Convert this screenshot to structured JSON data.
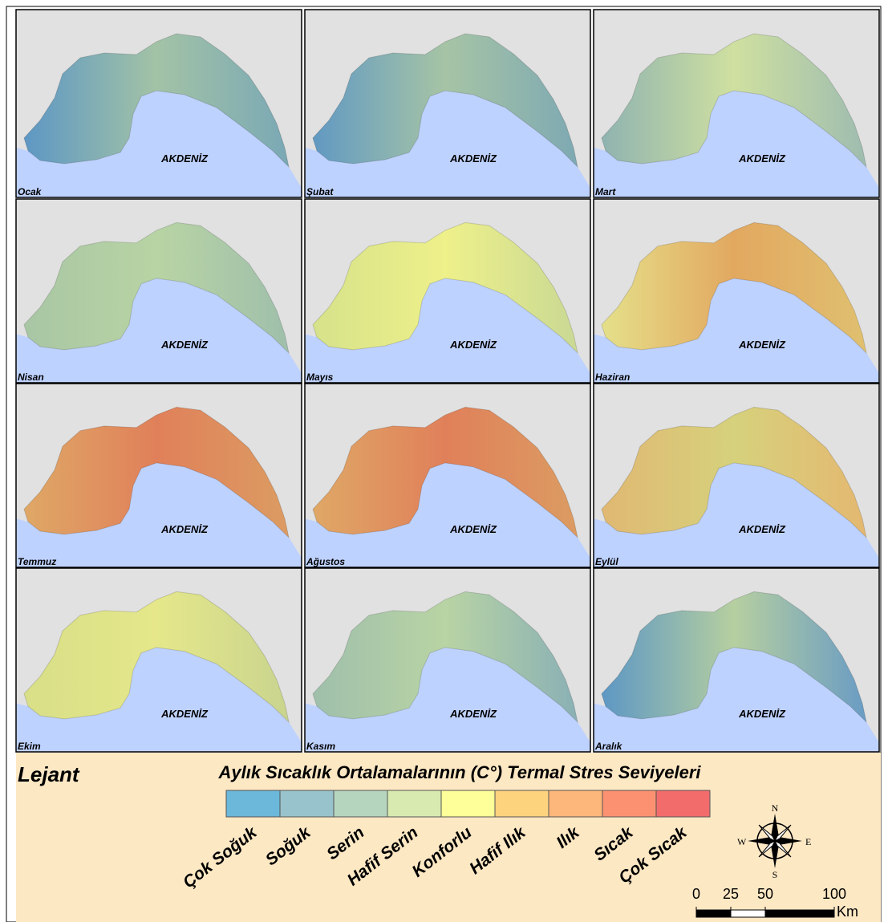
{
  "panels": [
    {
      "month": "Ocak",
      "sea_label": "AKDENİZ",
      "colors": [
        "#5d97c4",
        "#a3c3a6",
        "#7aa8b5"
      ]
    },
    {
      "month": "Şubat",
      "sea_label": "AKDENİZ",
      "colors": [
        "#6199c2",
        "#a6c4a5",
        "#7ea9b3"
      ]
    },
    {
      "month": "Mart",
      "sea_label": "AKDENİZ",
      "colors": [
        "#8fb3b0",
        "#cfe0a0",
        "#9ebcb0"
      ]
    },
    {
      "month": "Nisan",
      "sea_label": "AKDENİZ",
      "colors": [
        "#a8c6a4",
        "#b8d4a4",
        "#9fbfab"
      ]
    },
    {
      "month": "Mayıs",
      "sea_label": "AKDENİZ",
      "colors": [
        "#d6e28a",
        "#eef08a",
        "#c9d994"
      ]
    },
    {
      "month": "Haziran",
      "sea_label": "AKDENİZ",
      "colors": [
        "#e5e08a",
        "#e2a860",
        "#e0c070"
      ]
    },
    {
      "month": "Temmuz",
      "sea_label": "AKDENİZ",
      "colors": [
        "#dfa866",
        "#e0805a",
        "#dc9c62"
      ]
    },
    {
      "month": "Ağustos",
      "sea_label": "AKDENİZ",
      "colors": [
        "#dfa866",
        "#e0805a",
        "#dc9c62"
      ]
    },
    {
      "month": "Eylül",
      "sea_label": "AKDENİZ",
      "colors": [
        "#e0b872",
        "#d6d17c",
        "#e4b870"
      ]
    },
    {
      "month": "Ekim",
      "sea_label": "AKDENİZ",
      "colors": [
        "#d8df88",
        "#e5e78a",
        "#c9d48e"
      ]
    },
    {
      "month": "Kasım",
      "sea_label": "AKDENİZ",
      "colors": [
        "#9fbfab",
        "#b8d4a4",
        "#8ab0b5"
      ]
    },
    {
      "month": "Aralık",
      "sea_label": "AKDENİZ",
      "colors": [
        "#5d97c4",
        "#b6cfa0",
        "#6a9cc4"
      ]
    }
  ],
  "legend": {
    "title": "Lejant",
    "heading": "Aylık Sıcaklık Ortalamalarının (C°) Termal Stres Seviyeleri",
    "classes": [
      {
        "label": "Çok Soğuk",
        "color": "#6bb8db"
      },
      {
        "label": "Soğuk",
        "color": "#98c3cc"
      },
      {
        "label": "Serin",
        "color": "#b5d5bf"
      },
      {
        "label": "Hafif Serin",
        "color": "#d9eab1"
      },
      {
        "label": "Konforlu",
        "color": "#ffff99"
      },
      {
        "label": "Hafif Ilık",
        "color": "#fdd37e"
      },
      {
        "label": "Ilık",
        "color": "#fdb77a"
      },
      {
        "label": "Sıcak",
        "color": "#fb9171"
      },
      {
        "label": "Çok Sıcak",
        "color": "#f26c6c"
      }
    ]
  },
  "compass": {
    "n": "N",
    "e": "E",
    "s": "S",
    "w": "W"
  },
  "scale_bar": {
    "ticks": [
      0,
      25,
      50,
      100
    ],
    "unit": "Km"
  }
}
